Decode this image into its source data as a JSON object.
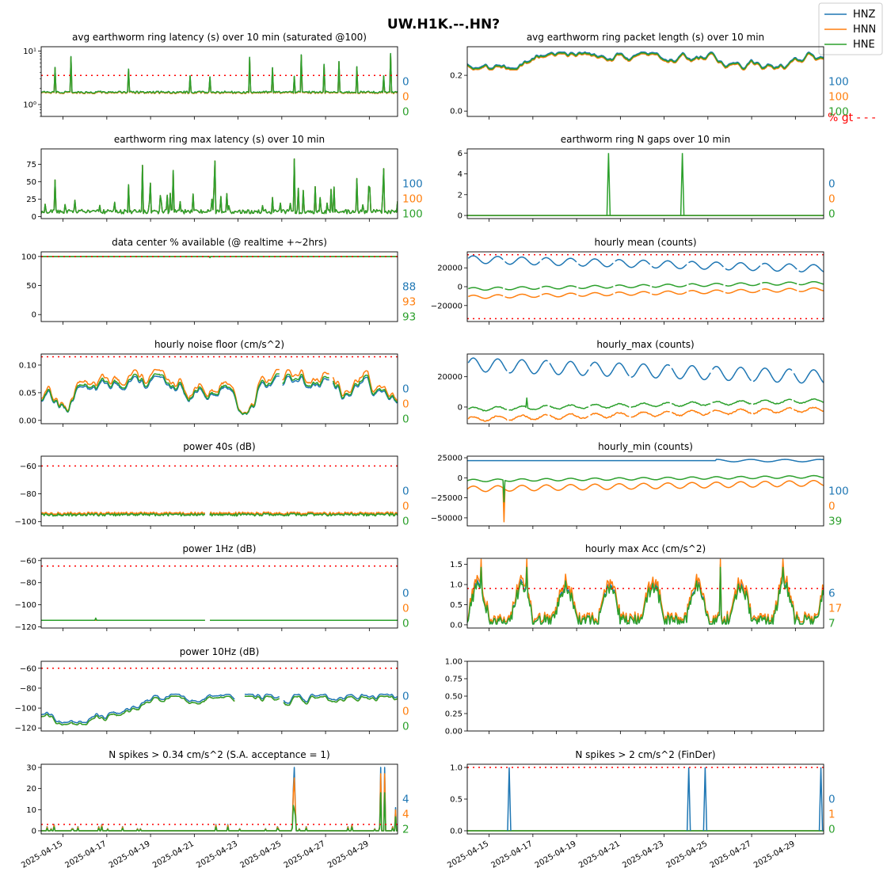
{
  "figure_title": "UW.H1K.--.HN?",
  "legend": [
    {
      "name": "HNZ",
      "color": "#1f77b4"
    },
    {
      "name": "HNN",
      "color": "#ff7f0e"
    },
    {
      "name": "HNE",
      "color": "#2ca02c"
    }
  ],
  "x_dates": [
    "2025-04-15",
    "2025-04-17",
    "2025-04-19",
    "2025-04-21",
    "2025-04-23",
    "2025-04-25",
    "2025-04-27",
    "2025-04-29"
  ],
  "pct_gt_label": "% gt - - -",
  "chart_data": [
    {
      "id": "p1",
      "type": "line",
      "title": "avg earthworm ring latency (s)   over 10 min (saturated @100)",
      "yscale": "log",
      "ylim": [
        0.6,
        12
      ],
      "yticks": [
        1,
        10
      ],
      "yticklabels": [
        "10⁰",
        "10¹"
      ],
      "threshold": 3.5,
      "percents": [
        "0",
        "0",
        "0"
      ],
      "mode": "latency"
    },
    {
      "id": "p2",
      "type": "line",
      "title": "avg earthworm ring packet length (s)   over 10 min",
      "ylim": [
        -0.03,
        0.36
      ],
      "yticks": [
        0.0,
        0.2
      ],
      "yticklabels": [
        "0.0",
        "0.2"
      ],
      "threshold": null,
      "percents": [
        "100",
        "100",
        "100"
      ],
      "mode": "packet"
    },
    {
      "id": "p3",
      "type": "line",
      "title": "earthworm ring max latency (s)   over 10 min",
      "ylim": [
        -3,
        97
      ],
      "yticks": [
        0,
        25,
        50,
        75
      ],
      "yticklabels": [
        "0",
        "25",
        "50",
        "75"
      ],
      "threshold": null,
      "percents": [
        "100",
        "100",
        "100"
      ],
      "mode": "maxlat"
    },
    {
      "id": "p4",
      "type": "line",
      "title": "earthworm ring N gaps   over 10 min",
      "ylim": [
        -0.3,
        6.4
      ],
      "yticks": [
        0,
        2,
        4,
        6
      ],
      "yticklabels": [
        "0",
        "2",
        "4",
        "6"
      ],
      "threshold": null,
      "percents": [
        "0",
        "0",
        "0"
      ],
      "mode": "gaps",
      "spikes": [
        {
          "x": "2025-04-20T11:00",
          "y": 6
        },
        {
          "x": "2025-04-23T20:00",
          "y": 6
        }
      ]
    },
    {
      "id": "p5",
      "type": "line",
      "title": "data center % available (@ realtime +~2hrs)",
      "ylim": [
        -12,
        108
      ],
      "yticks": [
        0,
        50,
        100
      ],
      "yticklabels": [
        "0",
        "50",
        "100"
      ],
      "threshold": 100,
      "percents": [
        "88",
        "93",
        "93"
      ],
      "mode": "avail"
    },
    {
      "id": "p6",
      "type": "line",
      "title": "hourly mean (counts)",
      "ylim": [
        -37000,
        37000
      ],
      "yticks": [
        -20000,
        0,
        20000
      ],
      "yticklabels": [
        "−20000",
        "0",
        "20000"
      ],
      "threshold": [
        -34000,
        34000
      ],
      "percents": [],
      "mode": "mean"
    },
    {
      "id": "p7",
      "type": "line",
      "title": "hourly noise floor (cm/s^2)",
      "ylim": [
        -0.006,
        0.12
      ],
      "yticks": [
        0.0,
        0.05,
        0.1
      ],
      "yticklabels": [
        "0.00",
        "0.05",
        "0.10"
      ],
      "threshold": 0.115,
      "percents": [
        "0",
        "0",
        "0"
      ],
      "mode": "noise"
    },
    {
      "id": "p8",
      "type": "line",
      "title": "hourly_max (counts)",
      "ylim": [
        -11000,
        35000
      ],
      "yticks": [
        0,
        20000
      ],
      "yticklabels": [
        "0",
        "20000"
      ],
      "threshold": null,
      "percents": [],
      "mode": "hmax"
    },
    {
      "id": "p9",
      "type": "line",
      "title": "power 40s (dB)",
      "ylim": [
        -103,
        -53
      ],
      "yticks": [
        -100,
        -80,
        -60
      ],
      "yticklabels": [
        "−100",
        "−80",
        "−60"
      ],
      "threshold": -60,
      "percents": [
        "0",
        "0",
        "0"
      ],
      "mode": "p40"
    },
    {
      "id": "p10",
      "type": "line",
      "title": "hourly_min (counts)",
      "ylim": [
        -60000,
        27000
      ],
      "yticks": [
        -50000,
        -25000,
        0,
        25000
      ],
      "yticklabels": [
        "−50000",
        "−25000",
        "0",
        "25000"
      ],
      "threshold": null,
      "percents": [
        "100",
        "0",
        "39"
      ],
      "mode": "hmin"
    },
    {
      "id": "p11",
      "type": "line",
      "title": "power 1Hz (dB)",
      "ylim": [
        -121,
        -58
      ],
      "yticks": [
        -120,
        -100,
        -80,
        -60
      ],
      "yticklabels": [
        "−120",
        "−100",
        "−80",
        "−60"
      ],
      "threshold": -65,
      "percents": [
        "0",
        "0",
        "0"
      ],
      "mode": "p1"
    },
    {
      "id": "p12",
      "type": "line",
      "title": "hourly max Acc (cm/s^2)",
      "ylim": [
        -0.08,
        1.65
      ],
      "yticks": [
        0.0,
        0.5,
        1.0,
        1.5
      ],
      "yticklabels": [
        "0.0",
        "0.5",
        "1.0",
        "1.5"
      ],
      "threshold": 0.9,
      "percents": [
        "6",
        "17",
        "7"
      ],
      "mode": "acc"
    },
    {
      "id": "p13",
      "type": "line",
      "title": "power 10Hz (dB)",
      "ylim": [
        -123,
        -53
      ],
      "yticks": [
        -120,
        -100,
        -80,
        -60
      ],
      "yticklabels": [
        "−120",
        "−100",
        "−80",
        "−60"
      ],
      "threshold": -60,
      "percents": [
        "0",
        "0",
        "0"
      ],
      "mode": "p10"
    },
    {
      "id": "p14",
      "type": "line",
      "title": "",
      "ylim": [
        0,
        1
      ],
      "yticks": [
        0,
        0.25,
        0.5,
        0.75,
        1.0
      ],
      "yticklabels": [
        "0.00",
        "0.25",
        "0.50",
        "0.75",
        "1.00"
      ],
      "threshold": null,
      "percents": [],
      "mode": "empty"
    },
    {
      "id": "p15",
      "type": "line",
      "title": "N spikes > 0.34 cm/s^2 (S.A. acceptance = 1)",
      "ylim": [
        -1.5,
        31.5
      ],
      "yticks": [
        0,
        10,
        20,
        30
      ],
      "yticklabels": [
        "0",
        "10",
        "20",
        "30"
      ],
      "threshold": 3,
      "percents": [
        "4",
        "4",
        "2"
      ],
      "mode": "nsp"
    },
    {
      "id": "p16",
      "type": "line",
      "title": "N spikes > 2 cm/s^2 (FinDer)",
      "ylim": [
        -0.05,
        1.05
      ],
      "yticks": [
        0,
        0.5,
        1.0
      ],
      "yticklabels": [
        "0.0",
        "0.5",
        "1.0"
      ],
      "threshold": 1,
      "percents": [
        "0",
        "1",
        "0"
      ],
      "mode": "finder",
      "spikes": [
        {
          "x": "2025-04-15T22:00",
          "y": 1
        },
        {
          "x": "2025-04-24T03:00",
          "y": 1
        },
        {
          "x": "2025-04-24T21:00",
          "y": 1
        },
        {
          "x": "2025-04-30T04:00",
          "y": 1
        }
      ]
    }
  ]
}
